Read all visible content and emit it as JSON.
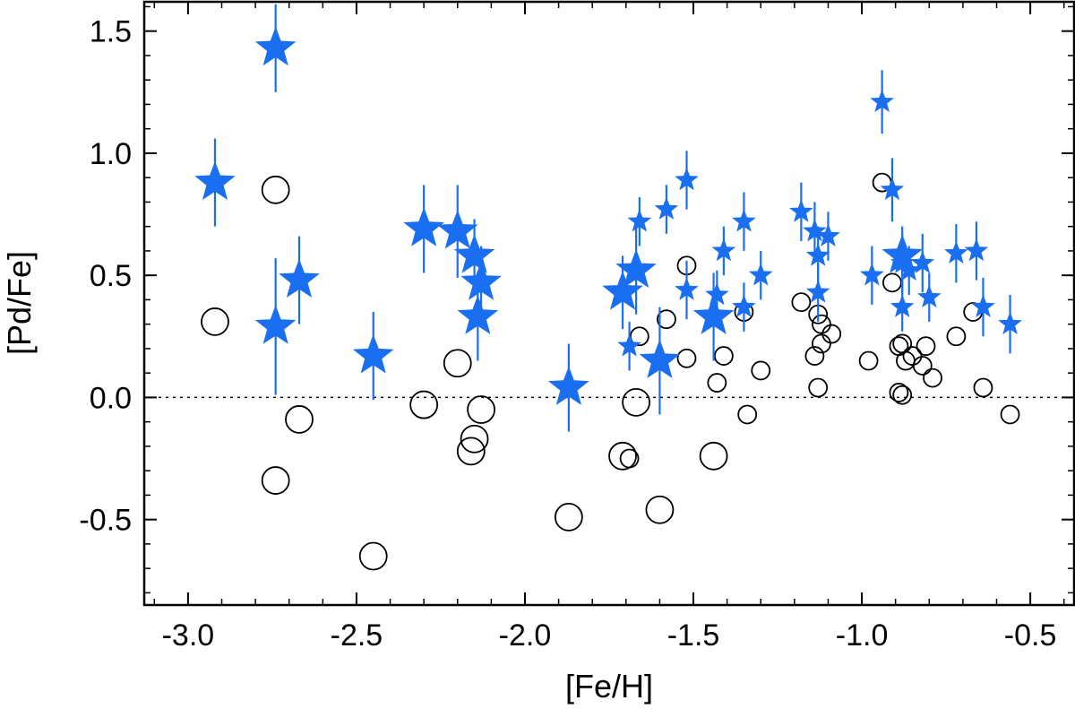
{
  "chart_data": {
    "type": "scatter",
    "title": "",
    "xlabel": "[Fe/H]",
    "ylabel": "[Pd/Fe]",
    "xlim": [
      -3.13,
      -0.37
    ],
    "ylim": [
      -0.85,
      1.62
    ],
    "x_ticks": [
      {
        "value": -3.0,
        "label": "-3.0"
      },
      {
        "value": -2.5,
        "label": "-2.5"
      },
      {
        "value": -2.0,
        "label": "-2.0"
      },
      {
        "value": -1.5,
        "label": "-1.5"
      },
      {
        "value": -1.0,
        "label": "-1.0"
      },
      {
        "value": -0.5,
        "label": "-0.5"
      }
    ],
    "y_ticks": [
      {
        "value": 1.5,
        "label": "1.5"
      },
      {
        "value": 1.0,
        "label": "1.0"
      },
      {
        "value": 0.5,
        "label": "0.5"
      },
      {
        "value": 0.0,
        "label": "0.0"
      },
      {
        "value": -0.5,
        "label": "-0.5"
      }
    ],
    "reference_line": {
      "y": 0.0,
      "style": "dotted"
    },
    "colors": {
      "stars": "#1a6ff0",
      "circles": "#000000",
      "axes": "#000000"
    },
    "series": [
      {
        "name": "stars",
        "marker": "star",
        "points": [
          {
            "x": -2.92,
            "y": 0.88,
            "err": 0.18,
            "big": true
          },
          {
            "x": -2.74,
            "y": 1.43,
            "err": 0.18,
            "big": true
          },
          {
            "x": -2.74,
            "y": 0.29,
            "err": 0.28,
            "big": true
          },
          {
            "x": -2.67,
            "y": 0.48,
            "err": 0.18,
            "big": true
          },
          {
            "x": -2.45,
            "y": 0.17,
            "err": 0.18,
            "big": true
          },
          {
            "x": -2.3,
            "y": 0.69,
            "err": 0.18,
            "big": true
          },
          {
            "x": -2.2,
            "y": 0.68,
            "err": 0.19,
            "big": true
          },
          {
            "x": -2.15,
            "y": 0.58,
            "err": 0.15,
            "big": true
          },
          {
            "x": -2.13,
            "y": 0.47,
            "err": 0.15,
            "big": true
          },
          {
            "x": -2.14,
            "y": 0.33,
            "err": 0.18,
            "big": true
          },
          {
            "x": -1.87,
            "y": 0.04,
            "err": 0.18,
            "big": true
          },
          {
            "x": -1.71,
            "y": 0.43,
            "err": 0.15,
            "big": true
          },
          {
            "x": -1.67,
            "y": 0.52,
            "err": 0.18,
            "big": true
          },
          {
            "x": -1.69,
            "y": 0.21,
            "err": 0.1,
            "big": false
          },
          {
            "x": -1.66,
            "y": 0.72,
            "err": 0.1,
            "big": false
          },
          {
            "x": -1.58,
            "y": 0.77,
            "err": 0.1,
            "big": false
          },
          {
            "x": -1.6,
            "y": 0.15,
            "err": 0.22,
            "big": true
          },
          {
            "x": -1.52,
            "y": 0.89,
            "err": 0.12,
            "big": false
          },
          {
            "x": -1.52,
            "y": 0.44,
            "err": 0.12,
            "big": false
          },
          {
            "x": -1.44,
            "y": 0.33,
            "err": 0.18,
            "big": true
          },
          {
            "x": -1.43,
            "y": 0.42,
            "err": 0.1,
            "big": false
          },
          {
            "x": -1.41,
            "y": 0.6,
            "err": 0.1,
            "big": false
          },
          {
            "x": -1.35,
            "y": 0.72,
            "err": 0.12,
            "big": false
          },
          {
            "x": -1.35,
            "y": 0.37,
            "err": 0.1,
            "big": false
          },
          {
            "x": -1.3,
            "y": 0.5,
            "err": 0.1,
            "big": false
          },
          {
            "x": -1.18,
            "y": 0.76,
            "err": 0.12,
            "big": false
          },
          {
            "x": -1.14,
            "y": 0.68,
            "err": 0.12,
            "big": false
          },
          {
            "x": -1.13,
            "y": 0.58,
            "err": 0.12,
            "big": false
          },
          {
            "x": -1.13,
            "y": 0.43,
            "err": 0.12,
            "big": false
          },
          {
            "x": -1.1,
            "y": 0.66,
            "err": 0.1,
            "big": false
          },
          {
            "x": -0.97,
            "y": 0.5,
            "err": 0.12,
            "big": false
          },
          {
            "x": -0.94,
            "y": 1.21,
            "err": 0.13,
            "big": false
          },
          {
            "x": -0.91,
            "y": 0.85,
            "err": 0.13,
            "big": false
          },
          {
            "x": -0.88,
            "y": 0.58,
            "err": 0.12,
            "big": true
          },
          {
            "x": -0.88,
            "y": 0.55,
            "err": 0.12,
            "big": false
          },
          {
            "x": -0.86,
            "y": 0.52,
            "err": 0.1,
            "big": false
          },
          {
            "x": -0.88,
            "y": 0.37,
            "err": 0.1,
            "big": false
          },
          {
            "x": -0.82,
            "y": 0.55,
            "err": 0.12,
            "big": false
          },
          {
            "x": -0.8,
            "y": 0.41,
            "err": 0.1,
            "big": false
          },
          {
            "x": -0.72,
            "y": 0.59,
            "err": 0.12,
            "big": false
          },
          {
            "x": -0.66,
            "y": 0.6,
            "err": 0.12,
            "big": false
          },
          {
            "x": -0.64,
            "y": 0.37,
            "err": 0.12,
            "big": false
          },
          {
            "x": -0.56,
            "y": 0.3,
            "err": 0.12,
            "big": false
          }
        ]
      },
      {
        "name": "circles",
        "marker": "open-circle",
        "points": [
          {
            "x": -2.92,
            "y": 0.31,
            "big": true
          },
          {
            "x": -2.74,
            "y": 0.85,
            "big": true
          },
          {
            "x": -2.74,
            "y": -0.34,
            "big": true
          },
          {
            "x": -2.67,
            "y": -0.09,
            "big": true
          },
          {
            "x": -2.45,
            "y": -0.65,
            "big": true
          },
          {
            "x": -2.3,
            "y": -0.03,
            "big": true
          },
          {
            "x": -2.2,
            "y": 0.14,
            "big": true
          },
          {
            "x": -2.15,
            "y": -0.17,
            "big": true
          },
          {
            "x": -2.16,
            "y": -0.22,
            "big": true
          },
          {
            "x": -2.13,
            "y": -0.05,
            "big": true
          },
          {
            "x": -1.87,
            "y": -0.49,
            "big": true
          },
          {
            "x": -1.71,
            "y": -0.24,
            "big": true
          },
          {
            "x": -1.69,
            "y": -0.25,
            "big": false
          },
          {
            "x": -1.67,
            "y": -0.02,
            "big": true
          },
          {
            "x": -1.66,
            "y": 0.25,
            "big": false
          },
          {
            "x": -1.6,
            "y": -0.46,
            "big": true
          },
          {
            "x": -1.58,
            "y": 0.32,
            "big": false
          },
          {
            "x": -1.52,
            "y": 0.54,
            "big": false
          },
          {
            "x": -1.52,
            "y": 0.16,
            "big": false
          },
          {
            "x": -1.44,
            "y": -0.24,
            "big": true
          },
          {
            "x": -1.43,
            "y": 0.06,
            "big": false
          },
          {
            "x": -1.41,
            "y": 0.17,
            "big": false
          },
          {
            "x": -1.35,
            "y": 0.35,
            "big": false
          },
          {
            "x": -1.34,
            "y": -0.07,
            "big": false
          },
          {
            "x": -1.3,
            "y": 0.11,
            "big": false
          },
          {
            "x": -1.18,
            "y": 0.39,
            "big": false
          },
          {
            "x": -1.14,
            "y": 0.17,
            "big": false
          },
          {
            "x": -1.13,
            "y": 0.34,
            "big": false
          },
          {
            "x": -1.12,
            "y": 0.3,
            "big": false
          },
          {
            "x": -1.12,
            "y": 0.22,
            "big": false
          },
          {
            "x": -1.13,
            "y": 0.04,
            "big": false
          },
          {
            "x": -1.09,
            "y": 0.26,
            "big": false
          },
          {
            "x": -0.98,
            "y": 0.15,
            "big": false
          },
          {
            "x": -0.94,
            "y": 0.88,
            "big": false
          },
          {
            "x": -0.91,
            "y": 0.47,
            "big": false
          },
          {
            "x": -0.89,
            "y": 0.21,
            "big": false
          },
          {
            "x": -0.88,
            "y": 0.22,
            "big": false
          },
          {
            "x": -0.87,
            "y": 0.15,
            "big": false
          },
          {
            "x": -0.89,
            "y": 0.02,
            "big": false
          },
          {
            "x": -0.88,
            "y": 0.01,
            "big": false
          },
          {
            "x": -0.85,
            "y": 0.17,
            "big": false
          },
          {
            "x": -0.82,
            "y": 0.13,
            "big": false
          },
          {
            "x": -0.81,
            "y": 0.21,
            "big": false
          },
          {
            "x": -0.79,
            "y": 0.08,
            "big": false
          },
          {
            "x": -0.72,
            "y": 0.25,
            "big": false
          },
          {
            "x": -0.67,
            "y": 0.35,
            "big": false
          },
          {
            "x": -0.64,
            "y": 0.04,
            "big": false
          },
          {
            "x": -0.56,
            "y": -0.07,
            "big": false
          }
        ]
      }
    ]
  }
}
